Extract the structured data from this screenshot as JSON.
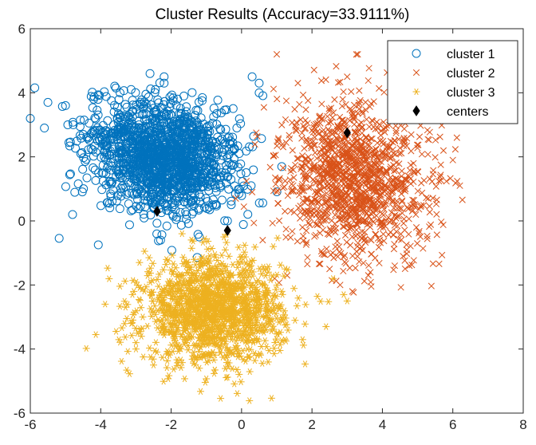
{
  "chart_data": {
    "type": "scatter",
    "title": "Cluster Results (Accuracy=33.9111%)",
    "xlabel": "",
    "ylabel": "",
    "xlim": [
      -6,
      8
    ],
    "ylim": [
      -6,
      6
    ],
    "xticks": [
      -6,
      -4,
      -2,
      0,
      2,
      4,
      6,
      8
    ],
    "yticks": [
      -6,
      -4,
      -2,
      0,
      2,
      4,
      6
    ],
    "grid": false,
    "legend_position": "top-right",
    "series": [
      {
        "name": "cluster 1",
        "marker": "circle",
        "color": "#0072BD",
        "distribution": {
          "mean": [
            -2.2,
            2.0
          ],
          "sd": [
            1.05,
            0.85
          ],
          "rotation_deg": -25,
          "count": 1500
        },
        "points": [
          [
            -6.0,
            3.2
          ],
          [
            -5.6,
            2.9
          ],
          [
            -5.5,
            3.7
          ],
          [
            -5.0,
            3.6
          ],
          [
            -4.8,
            0.2
          ],
          [
            -4.2,
            3.8
          ],
          [
            -2.6,
            4.6
          ],
          [
            -2.2,
            4.5
          ],
          [
            -2.2,
            4.3
          ],
          [
            0.3,
            4.5
          ],
          [
            0.5,
            4.3
          ],
          [
            0.5,
            4.0
          ],
          [
            -2.3,
            -0.6
          ],
          [
            -1.2,
            -0.5
          ],
          [
            -0.4,
            0.0
          ]
        ]
      },
      {
        "name": "cluster 2",
        "marker": "x",
        "color": "#D95319",
        "distribution": {
          "mean": [
            3.2,
            1.3
          ],
          "sd": [
            1.05,
            1.25
          ],
          "rotation_deg": 20,
          "count": 1300
        },
        "points": [
          [
            1.0,
            5.2
          ],
          [
            3.3,
            5.2
          ],
          [
            3.0,
            4.5
          ],
          [
            1.6,
            4.3
          ],
          [
            6.0,
            1.9
          ],
          [
            6.2,
            1.1
          ],
          [
            2.5,
            -1.5
          ],
          [
            2.8,
            -2.0
          ],
          [
            3.6,
            -1.7
          ],
          [
            0.6,
            -0.6
          ],
          [
            0.3,
            0.9
          ],
          [
            5.3,
            0.7
          ]
        ]
      },
      {
        "name": "cluster 3",
        "marker": "asterisk",
        "color": "#EDB120",
        "distribution": {
          "mean": [
            -0.8,
            -2.8
          ],
          "sd": [
            1.0,
            0.8
          ],
          "rotation_deg": 0,
          "count": 1400
        },
        "points": [
          [
            -2.9,
            -1.3
          ],
          [
            -3.1,
            -2.3
          ],
          [
            -3.0,
            -3.8
          ],
          [
            -3.0,
            -4.0
          ],
          [
            -2.5,
            -4.5
          ],
          [
            -1.2,
            -4.6
          ],
          [
            2.4,
            -3.3
          ],
          [
            3.0,
            -2.5
          ],
          [
            2.9,
            -2.3
          ],
          [
            2.6,
            -1.8
          ],
          [
            0.9,
            -0.8
          ],
          [
            -0.5,
            -0.5
          ]
        ]
      },
      {
        "name": "centers",
        "marker": "diamond",
        "color": "#000000",
        "points": [
          [
            -2.4,
            0.3
          ],
          [
            -0.4,
            -0.3
          ],
          [
            3.0,
            2.75
          ]
        ]
      }
    ]
  }
}
